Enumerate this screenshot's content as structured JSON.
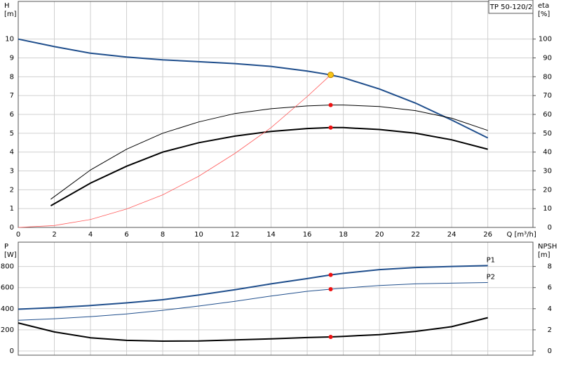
{
  "chart_data": [
    {
      "type": "line",
      "title": "TP 50-120/2",
      "x_label": "Q [m³/h]",
      "y_label": "H",
      "y_unit": "[m]",
      "y2_label": "eta",
      "y2_unit": "[%]",
      "xlim": [
        0,
        28.5
      ],
      "xticks": [
        0,
        2,
        4,
        6,
        8,
        10,
        12,
        14,
        16,
        18,
        20,
        22,
        24,
        26
      ],
      "xtick_labels": true,
      "ylim": [
        0,
        12
      ],
      "yticks": [
        0,
        1,
        2,
        3,
        4,
        5,
        6,
        7,
        8,
        9,
        10
      ],
      "y2lim": [
        0,
        120
      ],
      "y2ticks": [
        0,
        10,
        20,
        30,
        40,
        50,
        60,
        70,
        80,
        90,
        100
      ],
      "grid": true,
      "series": [
        {
          "color": "#1f4e8c",
          "line_width": 2,
          "axis": "y",
          "x": [
            0,
            2,
            4,
            6,
            8,
            10,
            12,
            14,
            16,
            17.3,
            18,
            20,
            22,
            24,
            26
          ],
          "values": [
            10,
            9.6,
            9.25,
            9.05,
            8.9,
            8.8,
            8.7,
            8.55,
            8.3,
            8.1,
            7.95,
            7.35,
            6.6,
            5.7,
            4.75
          ]
        },
        {
          "color": "#000000",
          "line_width": 1,
          "axis": "y2",
          "x": [
            1.8,
            4,
            6,
            8,
            10,
            12,
            14,
            16,
            17.3,
            18,
            20,
            22,
            24,
            26
          ],
          "values": [
            15,
            30.5,
            41.5,
            50,
            56,
            60.5,
            63,
            64.5,
            65,
            65,
            64.2,
            62,
            58,
            51.5
          ]
        },
        {
          "color": "#000000",
          "line_width": 2,
          "axis": "y2",
          "x": [
            1.8,
            4,
            6,
            8,
            10,
            12,
            14,
            16,
            17.3,
            18,
            20,
            22,
            24,
            26
          ],
          "values": [
            11.5,
            23.5,
            32.5,
            40,
            45,
            48.5,
            51,
            52.5,
            53,
            53,
            52,
            50,
            46.5,
            41.5
          ]
        },
        {
          "color": "#ff5a5a",
          "line_width": 0.8,
          "axis": "y",
          "x": [
            0,
            2,
            4,
            6,
            8,
            10,
            12,
            14,
            16,
            17.3
          ],
          "values": [
            0,
            0.1,
            0.42,
            0.98,
            1.73,
            2.72,
            3.93,
            5.3,
            6.95,
            8.1
          ]
        }
      ],
      "markers": [
        {
          "x": 17.3,
          "y": 8.1,
          "axis": "y",
          "color": "#f5c518"
        },
        {
          "x": 17.3,
          "y": 65,
          "axis": "y2",
          "color": "#ee1111"
        },
        {
          "x": 17.3,
          "y": 53,
          "axis": "y2",
          "color": "#ee1111"
        }
      ]
    },
    {
      "type": "line",
      "y_label": "P",
      "y_unit": "[W]",
      "y2_label": "NPSH",
      "y2_unit": "[m]",
      "xlim": [
        0,
        28.5
      ],
      "xticks": [
        0,
        2,
        4,
        6,
        8,
        10,
        12,
        14,
        16,
        18,
        20,
        22,
        24,
        26
      ],
      "xtick_labels": false,
      "ylim": [
        -40,
        1030
      ],
      "yticks": [
        0,
        200,
        400,
        600,
        800
      ],
      "y2lim": [
        -0.4,
        10.3
      ],
      "y2ticks": [
        0,
        2,
        4,
        6,
        8
      ],
      "grid": true,
      "series": [
        {
          "name": "P1",
          "color": "#1f4e8c",
          "line_width": 2,
          "axis": "y",
          "x": [
            0,
            2,
            4,
            6,
            8,
            10,
            12,
            14,
            16,
            17.3,
            18,
            20,
            22,
            24,
            26
          ],
          "values": [
            395,
            410,
            430,
            455,
            485,
            530,
            580,
            635,
            685,
            720,
            735,
            770,
            790,
            800,
            808
          ]
        },
        {
          "name": "P2",
          "color": "#1f4e8c",
          "line_width": 1,
          "axis": "y",
          "x": [
            0,
            2,
            4,
            6,
            8,
            10,
            12,
            14,
            16,
            17.3,
            18,
            20,
            22,
            24,
            26
          ],
          "values": [
            290,
            305,
            325,
            350,
            385,
            425,
            470,
            520,
            565,
            585,
            595,
            620,
            635,
            642,
            648
          ]
        },
        {
          "color": "#000000",
          "line_width": 2,
          "axis": "y2",
          "x": [
            0,
            2,
            4,
            6,
            8,
            10,
            12,
            14,
            16,
            17.3,
            18,
            20,
            22,
            24,
            26
          ],
          "values": [
            2.65,
            1.8,
            1.25,
            1.0,
            0.93,
            0.95,
            1.05,
            1.15,
            1.27,
            1.33,
            1.38,
            1.55,
            1.85,
            2.3,
            3.15
          ]
        }
      ],
      "markers": [
        {
          "x": 17.3,
          "y": 720,
          "axis": "y",
          "color": "#ee1111"
        },
        {
          "x": 17.3,
          "y": 585,
          "axis": "y",
          "color": "#ee1111"
        },
        {
          "x": 17.3,
          "y": 1.33,
          "axis": "y2",
          "color": "#ee1111"
        }
      ]
    }
  ]
}
